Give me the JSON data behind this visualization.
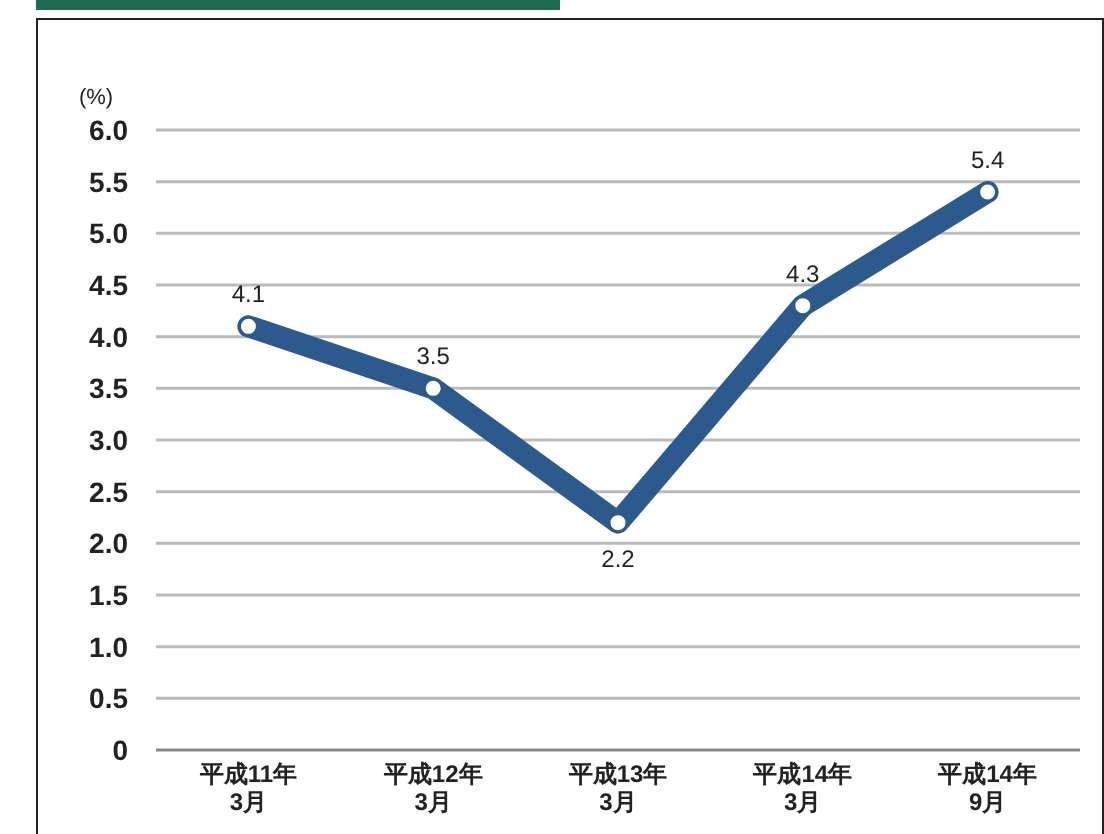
{
  "chart_data": {
    "type": "line",
    "ylabel": "(%)",
    "categories": [
      "平成11年\n3月",
      "平成12年\n3月",
      "平成13年\n3月",
      "平成14年\n3月",
      "平成14年\n9月"
    ],
    "series": [
      {
        "color": "#2d5a8c",
        "values": [
          4.1,
          3.5,
          2.2,
          4.3,
          5.4
        ]
      }
    ],
    "ylim": [
      0,
      6
    ],
    "yticks": [
      0,
      0.5,
      {
        "value": 1,
        "label": "1.0"
      },
      1.5,
      {
        "value": 2,
        "label": "2.0"
      },
      2.5,
      {
        "value": 3,
        "label": "3.0"
      },
      3.5,
      {
        "value": 4,
        "label": "4.0"
      },
      4.5,
      {
        "value": 5,
        "label": "5.0"
      },
      5.5,
      {
        "value": 6,
        "label": "6.0"
      }
    ],
    "grid": "y",
    "marker": "circle",
    "data_labels": true
  }
}
